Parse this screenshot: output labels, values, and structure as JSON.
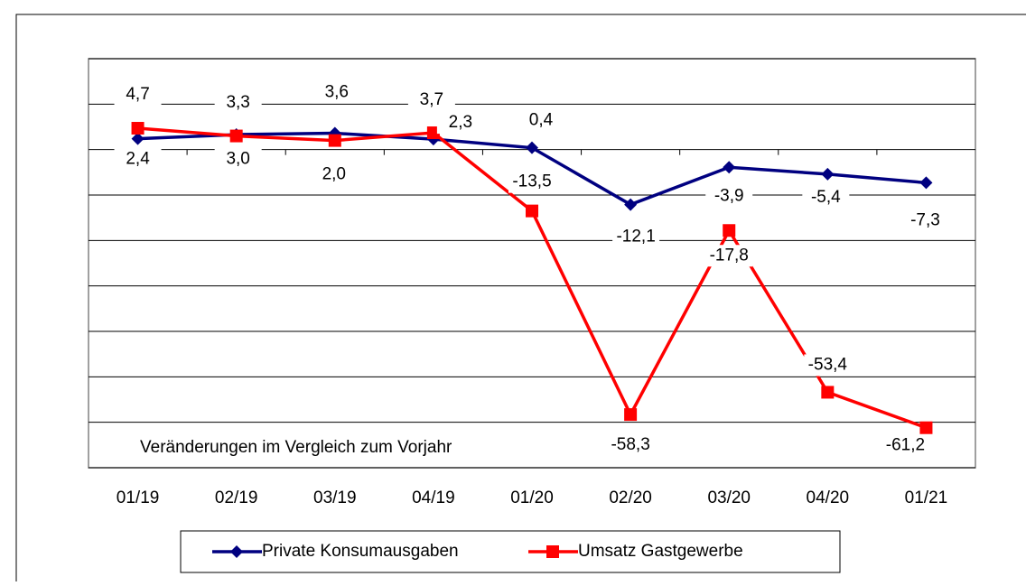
{
  "chart_data": {
    "type": "line",
    "annotation": "Veränderungen im Vergleich zum Vorjahr",
    "categories": [
      "01/19",
      "02/19",
      "03/19",
      "04/19",
      "01/20",
      "02/20",
      "03/20",
      "04/20",
      "01/21"
    ],
    "series": [
      {
        "name": "Private Konsumausgaben",
        "color": "#000080",
        "marker": "diamond",
        "values": [
          2.4,
          3.3,
          3.6,
          2.3,
          0.4,
          -12.1,
          -3.9,
          -5.4,
          -7.3
        ],
        "value_labels": [
          "2,4",
          "3,3",
          "3,6",
          "2,3",
          "0,4",
          "-12,1",
          "-3,9",
          "-5,4",
          "-7,3"
        ]
      },
      {
        "name": "Umsatz Gastgewerbe",
        "color": "#ff0000",
        "marker": "square",
        "values": [
          4.7,
          3.0,
          2.0,
          3.7,
          -13.5,
          -58.3,
          -17.8,
          -53.4,
          -61.2
        ],
        "value_labels": [
          "4,7",
          "3,0",
          "2,0",
          "3,7",
          "-13,5",
          "-58,3",
          "-17,8",
          "-53,4",
          "-61,2"
        ]
      }
    ],
    "ylim": [
      -70,
      20
    ],
    "yticks": [
      -70,
      -60,
      -50,
      -40,
      -30,
      -20,
      -10,
      0,
      10,
      20
    ],
    "grid": true
  }
}
